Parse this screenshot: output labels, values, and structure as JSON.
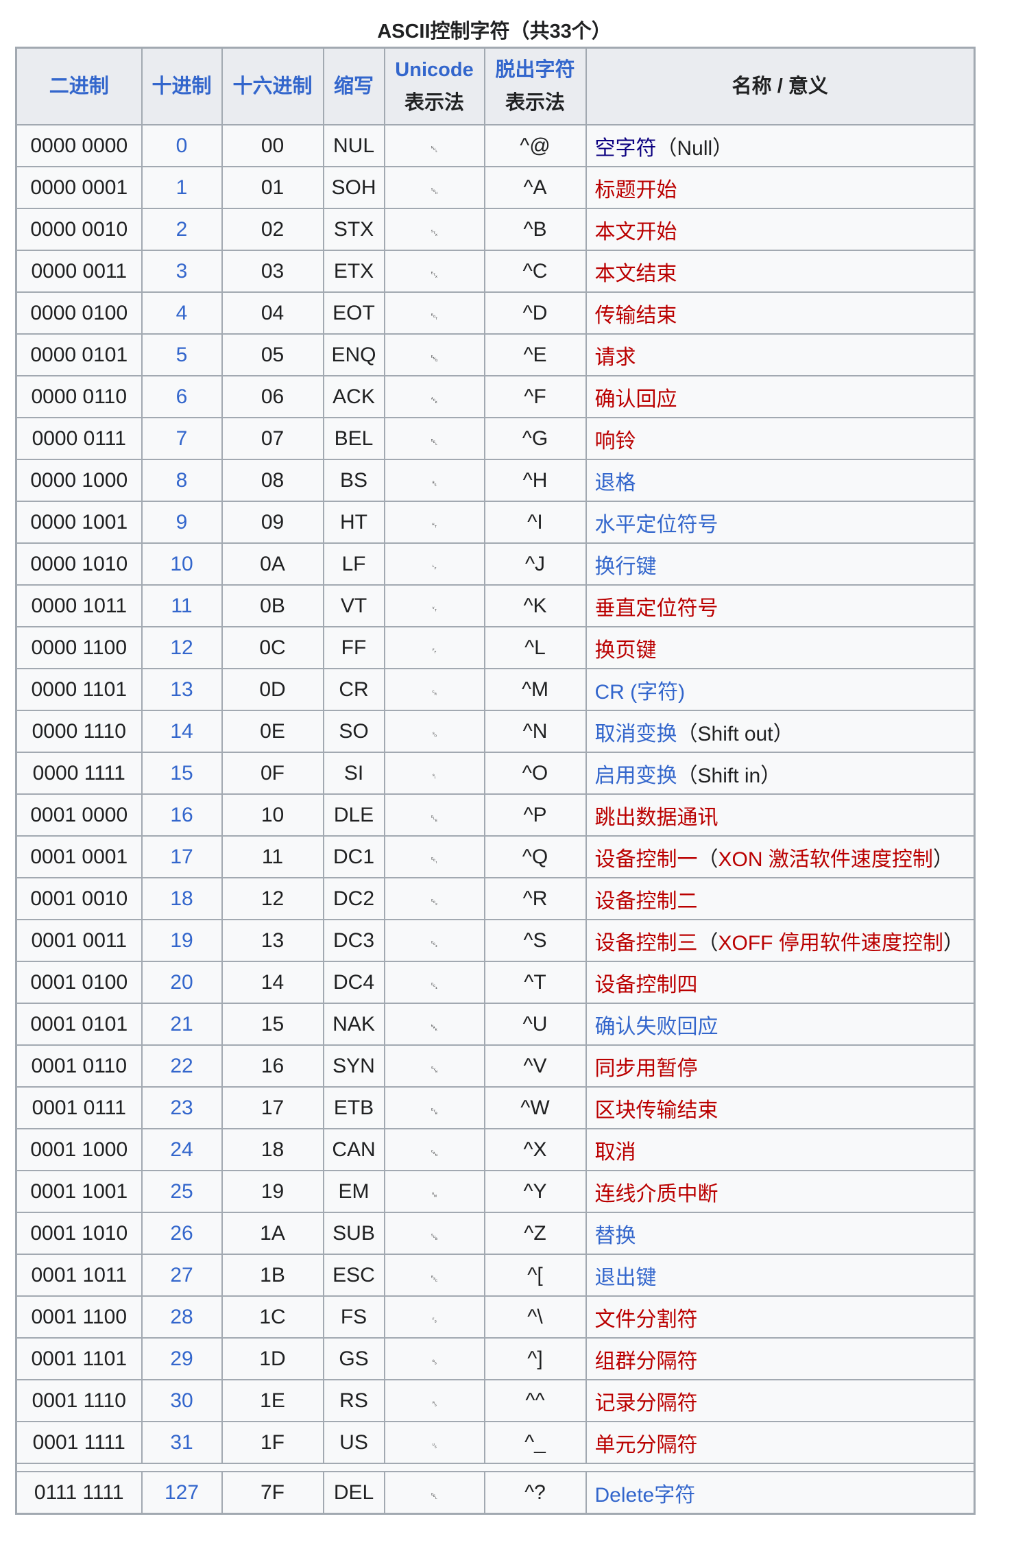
{
  "caption": "ASCII控制字符（共33个）",
  "headers": [
    [
      {
        "text": "二进制",
        "c": "b"
      }
    ],
    [
      {
        "text": "十进制",
        "c": "b"
      }
    ],
    [
      {
        "text": "十六进制",
        "c": "b"
      }
    ],
    [
      {
        "text": "缩写",
        "c": "b"
      }
    ],
    [
      {
        "text": "Unicode",
        "c": "b"
      },
      {
        "text": "表示法",
        "c": "t"
      }
    ],
    [
      {
        "text": "脱出字符",
        "c": "b"
      },
      {
        "text": "表示法",
        "c": "t"
      }
    ],
    [
      {
        "text": "名称 / 意义",
        "c": "t"
      }
    ]
  ],
  "colors": {
    "link": "#3366cc",
    "visited": "#0b0080",
    "redlink": "#ba0000",
    "header_bg": "#eaecf0",
    "cell_bg": "#f8f9fa",
    "border": "#a2a9b1"
  },
  "rows": [
    {
      "bin": "0000 0000",
      "dec": "0",
      "hex": "00",
      "abbr": "NUL",
      "sym": "␀",
      "esc": "^@",
      "name": [
        {
          "text": "空字符",
          "c": "v"
        },
        {
          "text": "（Null）",
          "c": "t"
        }
      ]
    },
    {
      "bin": "0000 0001",
      "dec": "1",
      "hex": "01",
      "abbr": "SOH",
      "sym": "␁",
      "esc": "^A",
      "name": [
        {
          "text": "标题开始",
          "c": "r"
        }
      ]
    },
    {
      "bin": "0000 0010",
      "dec": "2",
      "hex": "02",
      "abbr": "STX",
      "sym": "␂",
      "esc": "^B",
      "name": [
        {
          "text": "本文开始",
          "c": "r"
        }
      ]
    },
    {
      "bin": "0000 0011",
      "dec": "3",
      "hex": "03",
      "abbr": "ETX",
      "sym": "␃",
      "esc": "^C",
      "name": [
        {
          "text": "本文结束",
          "c": "r"
        }
      ]
    },
    {
      "bin": "0000 0100",
      "dec": "4",
      "hex": "04",
      "abbr": "EOT",
      "sym": "␄",
      "esc": "^D",
      "name": [
        {
          "text": "传输结束",
          "c": "r"
        }
      ]
    },
    {
      "bin": "0000 0101",
      "dec": "5",
      "hex": "05",
      "abbr": "ENQ",
      "sym": "␅",
      "esc": "^E",
      "name": [
        {
          "text": "请求",
          "c": "r"
        }
      ]
    },
    {
      "bin": "0000 0110",
      "dec": "6",
      "hex": "06",
      "abbr": "ACK",
      "sym": "␆",
      "esc": "^F",
      "name": [
        {
          "text": "确认回应",
          "c": "r"
        }
      ]
    },
    {
      "bin": "0000 0111",
      "dec": "7",
      "hex": "07",
      "abbr": "BEL",
      "sym": "␇",
      "esc": "^G",
      "name": [
        {
          "text": "响铃",
          "c": "r"
        }
      ]
    },
    {
      "bin": "0000 1000",
      "dec": "8",
      "hex": "08",
      "abbr": "BS",
      "sym": "␈",
      "esc": "^H",
      "name": [
        {
          "text": "退格",
          "c": "b"
        }
      ]
    },
    {
      "bin": "0000 1001",
      "dec": "9",
      "hex": "09",
      "abbr": "HT",
      "sym": "␉",
      "esc": "^I",
      "name": [
        {
          "text": "水平定位符号",
          "c": "b"
        }
      ]
    },
    {
      "bin": "0000 1010",
      "dec": "10",
      "hex": "0A",
      "abbr": "LF",
      "sym": "␊",
      "esc": "^J",
      "name": [
        {
          "text": "换行键",
          "c": "b"
        }
      ]
    },
    {
      "bin": "0000 1011",
      "dec": "11",
      "hex": "0B",
      "abbr": "VT",
      "sym": "␋",
      "esc": "^K",
      "name": [
        {
          "text": "垂直定位符号",
          "c": "r"
        }
      ]
    },
    {
      "bin": "0000 1100",
      "dec": "12",
      "hex": "0C",
      "abbr": "FF",
      "sym": "␌",
      "esc": "^L",
      "name": [
        {
          "text": "换页键",
          "c": "r"
        }
      ]
    },
    {
      "bin": "0000 1101",
      "dec": "13",
      "hex": "0D",
      "abbr": "CR",
      "sym": "␍",
      "esc": "^M",
      "name": [
        {
          "text": "CR (字符)",
          "c": "b"
        }
      ]
    },
    {
      "bin": "0000 1110",
      "dec": "14",
      "hex": "0E",
      "abbr": "SO",
      "sym": "␎",
      "esc": "^N",
      "name": [
        {
          "text": "取消变换",
          "c": "b"
        },
        {
          "text": "（Shift out）",
          "c": "t"
        }
      ]
    },
    {
      "bin": "0000 1111",
      "dec": "15",
      "hex": "0F",
      "abbr": "SI",
      "sym": "␏",
      "esc": "^O",
      "name": [
        {
          "text": "启用变换",
          "c": "b"
        },
        {
          "text": "（Shift in）",
          "c": "t"
        }
      ]
    },
    {
      "bin": "0001 0000",
      "dec": "16",
      "hex": "10",
      "abbr": "DLE",
      "sym": "␐",
      "esc": "^P",
      "name": [
        {
          "text": "跳出数据通讯",
          "c": "r"
        }
      ]
    },
    {
      "bin": "0001 0001",
      "dec": "17",
      "hex": "11",
      "abbr": "DC1",
      "sym": "␑",
      "esc": "^Q",
      "name": [
        {
          "text": "设备控制一",
          "c": "r"
        },
        {
          "text": "（",
          "c": "t"
        },
        {
          "text": "XON 激活软件速度控制",
          "c": "r"
        },
        {
          "text": "）",
          "c": "t"
        }
      ]
    },
    {
      "bin": "0001 0010",
      "dec": "18",
      "hex": "12",
      "abbr": "DC2",
      "sym": "␒",
      "esc": "^R",
      "name": [
        {
          "text": "设备控制二",
          "c": "r"
        }
      ]
    },
    {
      "bin": "0001 0011",
      "dec": "19",
      "hex": "13",
      "abbr": "DC3",
      "sym": "␓",
      "esc": "^S",
      "name": [
        {
          "text": "设备控制三",
          "c": "r"
        },
        {
          "text": "（",
          "c": "t"
        },
        {
          "text": "XOFF 停用软件速度控制",
          "c": "r"
        },
        {
          "text": "）",
          "c": "t"
        }
      ]
    },
    {
      "bin": "0001 0100",
      "dec": "20",
      "hex": "14",
      "abbr": "DC4",
      "sym": "␔",
      "esc": "^T",
      "name": [
        {
          "text": "设备控制四",
          "c": "r"
        }
      ]
    },
    {
      "bin": "0001 0101",
      "dec": "21",
      "hex": "15",
      "abbr": "NAK",
      "sym": "␕",
      "esc": "^U",
      "name": [
        {
          "text": "确认失败回应",
          "c": "b"
        }
      ]
    },
    {
      "bin": "0001 0110",
      "dec": "22",
      "hex": "16",
      "abbr": "SYN",
      "sym": "␖",
      "esc": "^V",
      "name": [
        {
          "text": "同步用暂停",
          "c": "r"
        }
      ]
    },
    {
      "bin": "0001 0111",
      "dec": "23",
      "hex": "17",
      "abbr": "ETB",
      "sym": "␗",
      "esc": "^W",
      "name": [
        {
          "text": "区块传输结束",
          "c": "r"
        }
      ]
    },
    {
      "bin": "0001 1000",
      "dec": "24",
      "hex": "18",
      "abbr": "CAN",
      "sym": "␘",
      "esc": "^X",
      "name": [
        {
          "text": "取消",
          "c": "r"
        }
      ]
    },
    {
      "bin": "0001 1001",
      "dec": "25",
      "hex": "19",
      "abbr": "EM",
      "sym": "␙",
      "esc": "^Y",
      "name": [
        {
          "text": "连线介质中断",
          "c": "r"
        }
      ]
    },
    {
      "bin": "0001 1010",
      "dec": "26",
      "hex": "1A",
      "abbr": "SUB",
      "sym": "␚",
      "esc": "^Z",
      "name": [
        {
          "text": "替换",
          "c": "b"
        }
      ]
    },
    {
      "bin": "0001 1011",
      "dec": "27",
      "hex": "1B",
      "abbr": "ESC",
      "sym": "␛",
      "esc": "^[",
      "name": [
        {
          "text": "退出键",
          "c": "b"
        }
      ]
    },
    {
      "bin": "0001 1100",
      "dec": "28",
      "hex": "1C",
      "abbr": "FS",
      "sym": "␜",
      "esc": "^\\",
      "name": [
        {
          "text": "文件分割符",
          "c": "r"
        }
      ]
    },
    {
      "bin": "0001 1101",
      "dec": "29",
      "hex": "1D",
      "abbr": "GS",
      "sym": "␝",
      "esc": "^]",
      "name": [
        {
          "text": "组群分隔符",
          "c": "r"
        }
      ]
    },
    {
      "bin": "0001 1110",
      "dec": "30",
      "hex": "1E",
      "abbr": "RS",
      "sym": "␞",
      "esc": "^^",
      "name": [
        {
          "text": "记录分隔符",
          "c": "r"
        }
      ]
    },
    {
      "bin": "0001 1111",
      "dec": "31",
      "hex": "1F",
      "abbr": "US",
      "sym": "␟",
      "esc": "^_",
      "name": [
        {
          "text": "单元分隔符",
          "c": "r"
        }
      ]
    }
  ],
  "del_row": {
    "bin": "0111 1111",
    "dec": "127",
    "hex": "7F",
    "abbr": "DEL",
    "sym": "␡",
    "esc": "^?",
    "name": [
      {
        "text": "Delete字符",
        "c": "b"
      }
    ]
  }
}
